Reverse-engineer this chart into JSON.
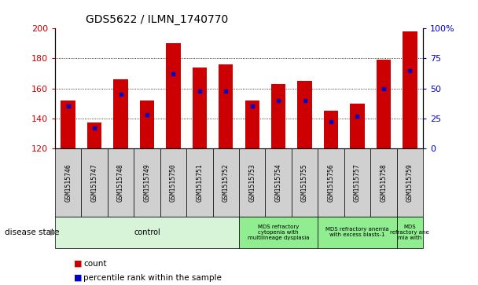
{
  "title": "GDS5622 / ILMN_1740770",
  "samples": [
    "GSM1515746",
    "GSM1515747",
    "GSM1515748",
    "GSM1515749",
    "GSM1515750",
    "GSM1515751",
    "GSM1515752",
    "GSM1515753",
    "GSM1515754",
    "GSM1515755",
    "GSM1515756",
    "GSM1515757",
    "GSM1515758",
    "GSM1515759"
  ],
  "counts": [
    152,
    137,
    166,
    152,
    190,
    174,
    176,
    152,
    163,
    165,
    145,
    150,
    179,
    198
  ],
  "percentile_ranks": [
    35,
    17,
    45,
    28,
    62,
    48,
    48,
    35,
    40,
    40,
    22,
    27,
    50,
    65
  ],
  "ylim_left": [
    120,
    200
  ],
  "ylim_right": [
    0,
    100
  ],
  "yticks_left": [
    120,
    140,
    160,
    180,
    200
  ],
  "yticks_right": [
    0,
    25,
    50,
    75,
    100
  ],
  "bar_color": "#cc0000",
  "dot_color": "#0000cc",
  "bar_width": 0.55,
  "bg_plot": "#ffffff",
  "disease_groups": [
    {
      "label": "control",
      "start": 0,
      "end": 7,
      "color": "#d8f4d8"
    },
    {
      "label": "MDS refractory\ncytopenia with\nmultilineage dysplasia",
      "start": 7,
      "end": 10,
      "color": "#90ee90"
    },
    {
      "label": "MDS refractory anemia\nwith excess blasts-1",
      "start": 10,
      "end": 13,
      "color": "#90ee90"
    },
    {
      "label": "MDS\nrefractory ane\nmia with",
      "start": 13,
      "end": 14,
      "color": "#90ee90"
    }
  ],
  "tick_color_left": "#cc0000",
  "tick_color_right": "#0000cc",
  "sample_box_color": "#d0d0d0",
  "grid_lines": [
    140,
    160,
    180
  ]
}
